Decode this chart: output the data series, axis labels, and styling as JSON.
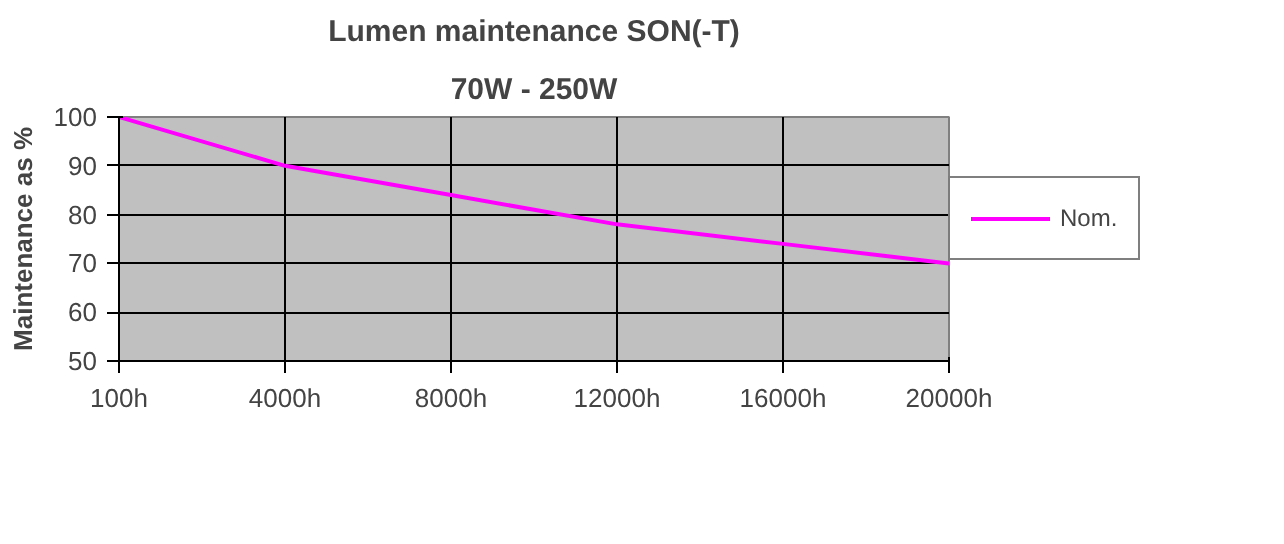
{
  "chart_data": {
    "type": "line",
    "title": "Lumen maintenance SON(-T)",
    "subtitle": "70W - 250W",
    "ylabel": "Maintenance as %",
    "categories": [
      "100h",
      "4000h",
      "8000h",
      "12000h",
      "16000h",
      "20000h"
    ],
    "series": [
      {
        "name": "Nom.",
        "color": "#ff00ff",
        "values": [
          100,
          90,
          84,
          78,
          74,
          70
        ]
      }
    ],
    "ylim": [
      50,
      100
    ],
    "yticks": [
      50,
      60,
      70,
      80,
      90,
      100
    ],
    "grid": true,
    "legend": "right",
    "marker": "none",
    "line_style": "solid"
  }
}
